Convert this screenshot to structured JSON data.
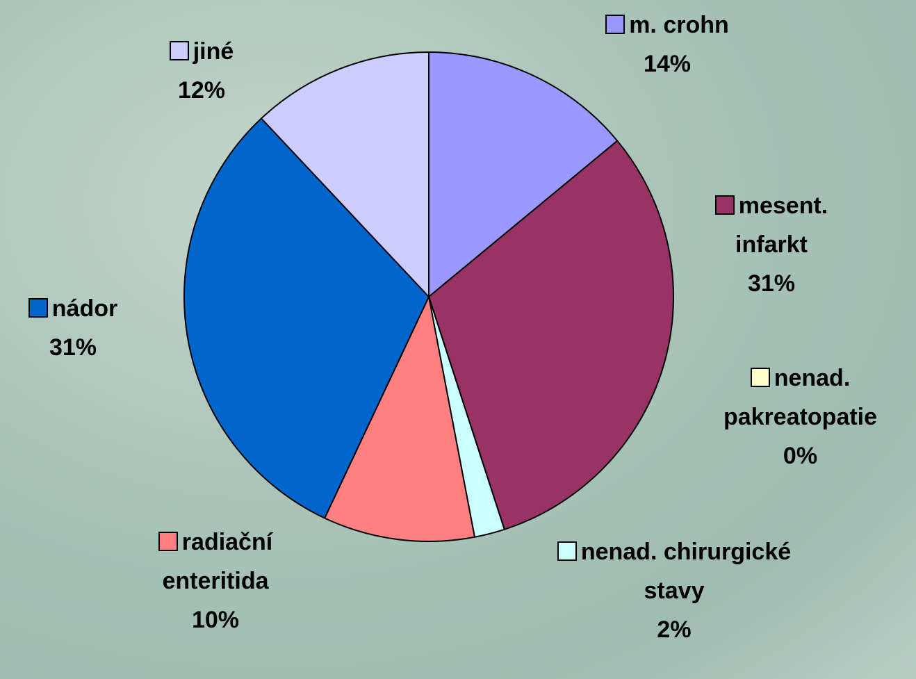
{
  "chart_data": {
    "type": "pie",
    "categories": [
      "m. crohn",
      "mesent. infarkt",
      "nenad. pakreatopatie",
      "nenad. chirurgické stavy",
      "radiační enteritida",
      "nádor",
      "jiné"
    ],
    "values": [
      14,
      31,
      0,
      2,
      10,
      31,
      12
    ],
    "value_labels": [
      "14%",
      "31%",
      "0%",
      "2%",
      "10%",
      "31%",
      "12%"
    ],
    "colors": [
      "#9999ff",
      "#993366",
      "#ffffcc",
      "#ccffff",
      "#ff8080",
      "#0066cc",
      "#ccccff"
    ]
  }
}
